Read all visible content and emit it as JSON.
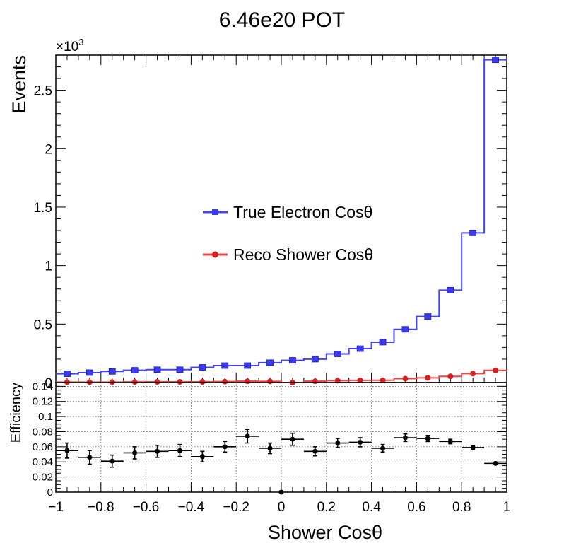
{
  "chart_data": [
    {
      "type": "histogram",
      "title": "6.46e20 POT",
      "ylabel": "Events",
      "y_exponent_label": "×10",
      "y_exponent": "3",
      "xlim": [
        -1,
        1
      ],
      "ylim": [
        0,
        2.8
      ],
      "yticks": [
        0,
        0.5,
        1,
        1.5,
        2,
        2.5
      ],
      "ytick_labels": [
        "0",
        "0.5",
        "1",
        "1.5",
        "2",
        "2.5"
      ],
      "grid": false,
      "legend_position": "center",
      "bin_edges": [
        -1,
        -0.9,
        -0.8,
        -0.7,
        -0.6,
        -0.5,
        -0.4,
        -0.3,
        -0.2,
        -0.1,
        0,
        0.1,
        0.2,
        0.3,
        0.4,
        0.5,
        0.6,
        0.7,
        0.8,
        0.9,
        1
      ],
      "series": [
        {
          "name": "True Electron Cosθ",
          "color": "#4444ee",
          "marker": "square",
          "values": [
            0.075,
            0.085,
            0.095,
            0.105,
            0.11,
            0.11,
            0.13,
            0.145,
            0.145,
            0.17,
            0.19,
            0.2,
            0.245,
            0.29,
            0.345,
            0.455,
            0.565,
            0.79,
            1.28,
            2.76
          ]
        },
        {
          "name": "Reco Shower Cosθ",
          "color": "#ee4444",
          "marker": "circle",
          "values": [
            0.004,
            0.004,
            0.004,
            0.005,
            0.006,
            0.006,
            0.006,
            0.008,
            0.011,
            0.01,
            0,
            0.011,
            0.016,
            0.019,
            0.02,
            0.033,
            0.04,
            0.053,
            0.076,
            0.104
          ]
        }
      ]
    },
    {
      "type": "scatter",
      "ylabel": "Efficiency",
      "xlabel": "Shower Cosθ",
      "xlim": [
        -1,
        1
      ],
      "ylim": [
        0,
        0.145
      ],
      "xticks": [
        -1,
        -0.8,
        -0.6,
        -0.4,
        -0.2,
        0,
        0.2,
        0.4,
        0.6,
        0.8,
        1
      ],
      "xtick_labels": [
        "−1",
        "−0.8",
        "−0.6",
        "−0.4",
        "−0.2",
        "0",
        "0.2",
        "0.4",
        "0.6",
        "0.8",
        "1"
      ],
      "yticks": [
        0,
        0.02,
        0.04,
        0.06,
        0.08,
        0.1,
        0.12,
        0.14
      ],
      "ytick_labels": [
        "0",
        "0.02",
        "0.04",
        "0.06",
        "0.08",
        "0.1",
        "0.12",
        "0.14"
      ],
      "grid": true,
      "x": [
        -0.95,
        -0.85,
        -0.75,
        -0.65,
        -0.55,
        -0.45,
        -0.35,
        -0.25,
        -0.15,
        -0.05,
        0.0,
        0.05,
        0.15,
        0.25,
        0.35,
        0.45,
        0.55,
        0.65,
        0.75,
        0.85,
        0.95
      ],
      "y": [
        0.055,
        0.046,
        0.041,
        0.052,
        0.054,
        0.055,
        0.047,
        0.06,
        0.074,
        0.058,
        0.0,
        0.07,
        0.054,
        0.065,
        0.066,
        0.058,
        0.072,
        0.071,
        0.067,
        0.059,
        0.038
      ],
      "y_err": [
        0.01,
        0.009,
        0.008,
        0.008,
        0.008,
        0.008,
        0.007,
        0.007,
        0.009,
        0.007,
        0.0,
        0.008,
        0.006,
        0.006,
        0.006,
        0.005,
        0.005,
        0.004,
        0.003,
        0.002,
        0.001
      ],
      "x_err": [
        0.05,
        0.05,
        0.05,
        0.05,
        0.05,
        0.05,
        0.05,
        0.05,
        0.05,
        0.05,
        0.0,
        0.05,
        0.05,
        0.05,
        0.05,
        0.05,
        0.05,
        0.05,
        0.05,
        0.05,
        0.05
      ],
      "color": "#000000"
    }
  ]
}
